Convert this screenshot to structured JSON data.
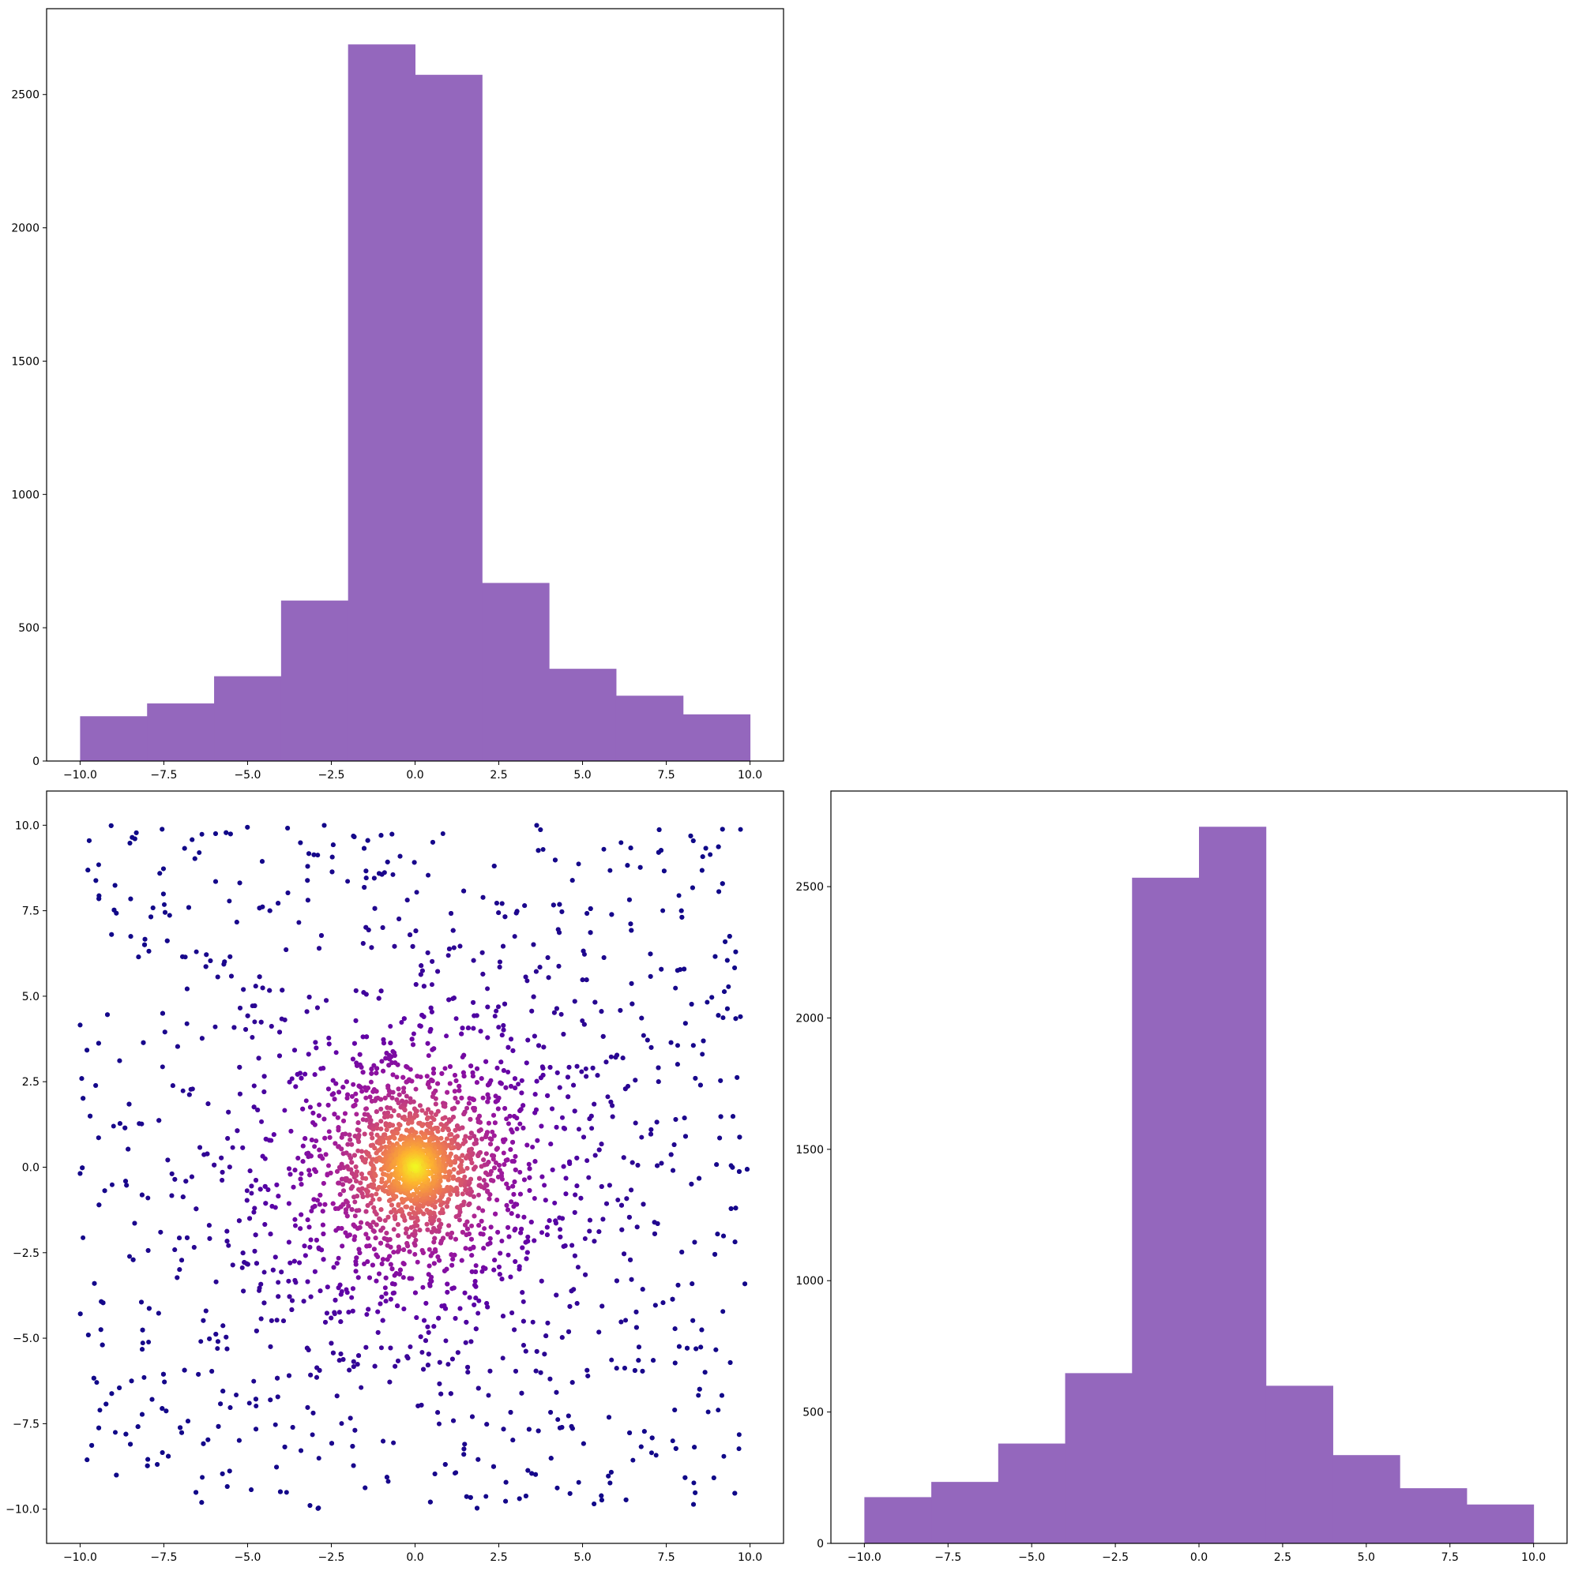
{
  "colors": {
    "hist_fill": "#9467bd",
    "scatter_colormap": [
      "#0d0887",
      "#5c01a6",
      "#9c179e",
      "#cc4778",
      "#ed7953",
      "#fdb42f",
      "#f0f921"
    ]
  },
  "chart_data": [
    {
      "type": "bar",
      "panel": "top-left",
      "bin_edges": [
        -10,
        -8,
        -6,
        -4,
        -2,
        0,
        2,
        4,
        6,
        8,
        10
      ],
      "values": [
        168,
        216,
        318,
        602,
        2688,
        2574,
        668,
        346,
        245,
        175
      ],
      "xlim": [
        -11,
        11
      ],
      "ylim": [
        0,
        2822
      ],
      "xticks": [
        -10,
        -7.5,
        -5,
        -2.5,
        0,
        2.5,
        5,
        7.5,
        10
      ],
      "xtick_labels": [
        "−10.0",
        "−7.5",
        "−5.0",
        "−2.5",
        "0.0",
        "2.5",
        "5.0",
        "7.5",
        "10.0"
      ],
      "yticks": [
        0,
        500,
        1000,
        1500,
        2000,
        2500
      ],
      "ytick_labels": [
        "0",
        "500",
        "1000",
        "1500",
        "2000",
        "2500"
      ]
    },
    {
      "type": "scatter",
      "panel": "bottom-left",
      "n_points": 6000,
      "x_range": [
        -10,
        10
      ],
      "y_range": [
        -10,
        10
      ],
      "color_by": "density",
      "xlim": [
        -11,
        11
      ],
      "ylim": [
        -11,
        11
      ],
      "xticks": [
        -10,
        -7.5,
        -5,
        -2.5,
        0,
        2.5,
        5,
        7.5,
        10
      ],
      "xtick_labels": [
        "−10.0",
        "−7.5",
        "−5.0",
        "−2.5",
        "0.0",
        "2.5",
        "5.0",
        "7.5",
        "10.0"
      ],
      "yticks": [
        -10,
        -7.5,
        -5,
        -2.5,
        0,
        2.5,
        5,
        7.5,
        10
      ],
      "ytick_labels": [
        "−10.0",
        "−7.5",
        "−5.0",
        "−2.5",
        "0.0",
        "2.5",
        "5.0",
        "7.5",
        "10.0"
      ]
    },
    {
      "type": "bar",
      "panel": "bottom-right",
      "bin_edges": [
        -10,
        -8,
        -6,
        -4,
        -2,
        0,
        2,
        4,
        6,
        8,
        10
      ],
      "values": [
        176,
        234,
        380,
        648,
        2534,
        2728,
        600,
        336,
        210,
        148
      ],
      "xlim": [
        -11,
        11
      ],
      "ylim": [
        0,
        2864
      ],
      "xticks": [
        -10,
        -7.5,
        -5,
        -2.5,
        0,
        2.5,
        5,
        7.5,
        10
      ],
      "xtick_labels": [
        "−10.0",
        "−7.5",
        "−5.0",
        "−2.5",
        "0.0",
        "2.5",
        "5.0",
        "7.5",
        "10.0"
      ],
      "yticks": [
        0,
        500,
        1000,
        1500,
        2000,
        2500
      ],
      "ytick_labels": [
        "0",
        "500",
        "1000",
        "1500",
        "2000",
        "2500"
      ]
    }
  ]
}
